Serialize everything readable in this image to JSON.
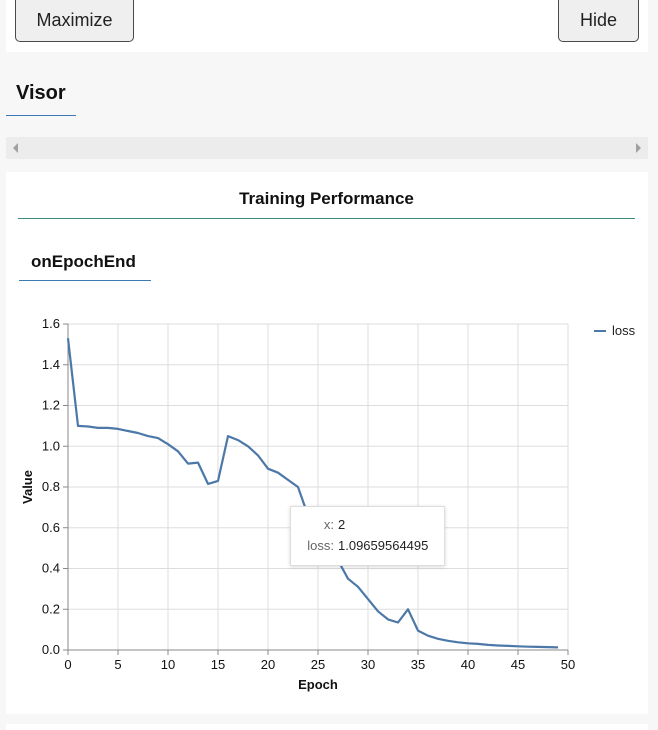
{
  "controls": {
    "maximize_label": "Maximize",
    "hide_label": "Hide"
  },
  "visor": {
    "tab_label": "Visor"
  },
  "surface": {
    "title": "Training Performance",
    "subtab_label": "onEpochEnd"
  },
  "tooltip": {
    "x_key": "x:",
    "x_value": "2",
    "loss_key": "loss:",
    "loss_value": "1.09659564495"
  },
  "colors": {
    "line": "#4c78a8",
    "grid": "#dddddd",
    "tab_underline": "#3d7ab5",
    "title_rule": "#3a8a7a"
  },
  "chart_data": {
    "type": "line",
    "title": "",
    "xlabel": "Epoch",
    "ylabel": "Value",
    "xlim": [
      0,
      50
    ],
    "ylim": [
      0,
      1.6
    ],
    "xticks": [
      "0",
      "5",
      "10",
      "15",
      "20",
      "25",
      "30",
      "35",
      "40",
      "45",
      "50"
    ],
    "yticks": [
      "0.0",
      "0.2",
      "0.4",
      "0.6",
      "0.8",
      "1.0",
      "1.2",
      "1.4",
      "1.6"
    ],
    "grid": true,
    "legend_position": "top-right",
    "series": [
      {
        "name": "loss",
        "x": [
          0,
          1,
          2,
          3,
          4,
          5,
          6,
          7,
          8,
          9,
          10,
          11,
          12,
          13,
          14,
          15,
          16,
          17,
          18,
          19,
          20,
          21,
          22,
          23,
          24,
          25,
          26,
          27,
          28,
          29,
          30,
          31,
          32,
          33,
          34,
          35,
          36,
          37,
          38,
          39,
          40,
          41,
          42,
          43,
          44,
          45,
          46,
          47,
          48,
          49
        ],
        "values": [
          1.53,
          1.1,
          1.097,
          1.09,
          1.09,
          1.085,
          1.075,
          1.065,
          1.05,
          1.04,
          1.01,
          0.975,
          0.915,
          0.92,
          0.815,
          0.83,
          1.05,
          1.03,
          1.0,
          0.955,
          0.89,
          0.87,
          0.835,
          0.8,
          0.66,
          0.6,
          0.52,
          0.44,
          0.35,
          0.31,
          0.25,
          0.19,
          0.15,
          0.135,
          0.2,
          0.095,
          0.07,
          0.055,
          0.045,
          0.038,
          0.033,
          0.03,
          0.025,
          0.022,
          0.02,
          0.018,
          0.016,
          0.015,
          0.014,
          0.013
        ]
      }
    ]
  }
}
